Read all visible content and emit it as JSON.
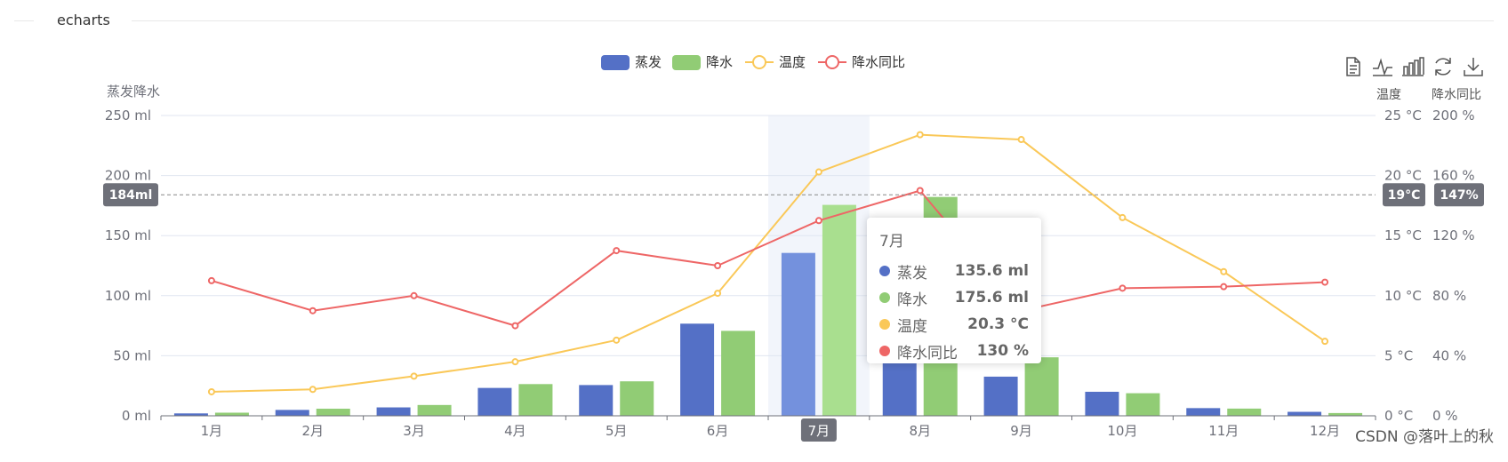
{
  "header": {
    "title": "echarts"
  },
  "toolbox": {
    "icons": [
      "data-view-icon",
      "line-chart-icon",
      "bar-chart-icon",
      "restore-icon",
      "download-icon"
    ],
    "labels": [
      "温度",
      "降水同比"
    ]
  },
  "watermark": "CSDN @落叶上的秋",
  "tooltip": {
    "title": "7月",
    "rows": [
      {
        "name": "蒸发",
        "value": "135.6 ml",
        "color": "#5470c6"
      },
      {
        "name": "降水",
        "value": "175.6 ml",
        "color": "#91cc75"
      },
      {
        "name": "温度",
        "value": "20.3 °C",
        "color": "#fac858"
      },
      {
        "name": "降水同比",
        "value": "130 %",
        "color": "#ee6666"
      }
    ]
  },
  "chart_data": {
    "type": "bar",
    "categories": [
      "1月",
      "2月",
      "3月",
      "4月",
      "5月",
      "6月",
      "7月",
      "8月",
      "9月",
      "10月",
      "11月",
      "12月"
    ],
    "highlighted_category": "7月",
    "legend": [
      "蒸发",
      "降水",
      "温度",
      "降水同比"
    ],
    "legend_position": "top-center",
    "grid": true,
    "y_axes": [
      {
        "name": "蒸发降水",
        "min": 0,
        "max": 250,
        "interval": 50,
        "unit": " ml",
        "ticks": [
          "0 ml",
          "50 ml",
          "100 ml",
          "150 ml",
          "200 ml",
          "250 ml"
        ],
        "position": "left"
      },
      {
        "name": "温度",
        "min": 0,
        "max": 25,
        "interval": 5,
        "unit": " °C",
        "ticks": [
          "0 °C",
          "5 °C",
          "10 °C",
          "15 °C",
          "20 °C",
          "25 °C"
        ],
        "position": "right"
      },
      {
        "name": "降水同比",
        "min": 0,
        "max": 200,
        "interval": 40,
        "unit": " %",
        "ticks": [
          "0 %",
          "40 %",
          "80 %",
          "120 %",
          "160 %",
          "200 %"
        ],
        "position": "right"
      }
    ],
    "crosshair": {
      "y_value_ml": 184,
      "labels": [
        "184ml",
        "19°C",
        "147%"
      ],
      "x_label": "7月"
    },
    "series": [
      {
        "name": "蒸发",
        "type": "bar",
        "axis": 0,
        "color": "#5470c6",
        "values": [
          2.0,
          4.9,
          7.0,
          23.2,
          25.6,
          76.7,
          135.6,
          162.2,
          32.6,
          20.0,
          6.4,
          3.3
        ]
      },
      {
        "name": "降水",
        "type": "bar",
        "axis": 0,
        "color": "#91cc75",
        "values": [
          2.6,
          5.9,
          9.0,
          26.4,
          28.7,
          70.7,
          175.6,
          182.2,
          48.7,
          18.8,
          6.0,
          2.3
        ]
      },
      {
        "name": "温度",
        "type": "line",
        "axis": 1,
        "color": "#fac858",
        "values": [
          2.0,
          2.2,
          3.3,
          4.5,
          6.3,
          10.2,
          20.3,
          23.4,
          23.0,
          16.5,
          12.0,
          6.2
        ]
      },
      {
        "name": "降水同比",
        "type": "line",
        "axis": 2,
        "color": "#ee6666",
        "values": [
          90,
          70,
          80,
          60,
          110,
          100,
          130,
          150,
          70,
          85,
          86,
          89
        ]
      }
    ]
  }
}
